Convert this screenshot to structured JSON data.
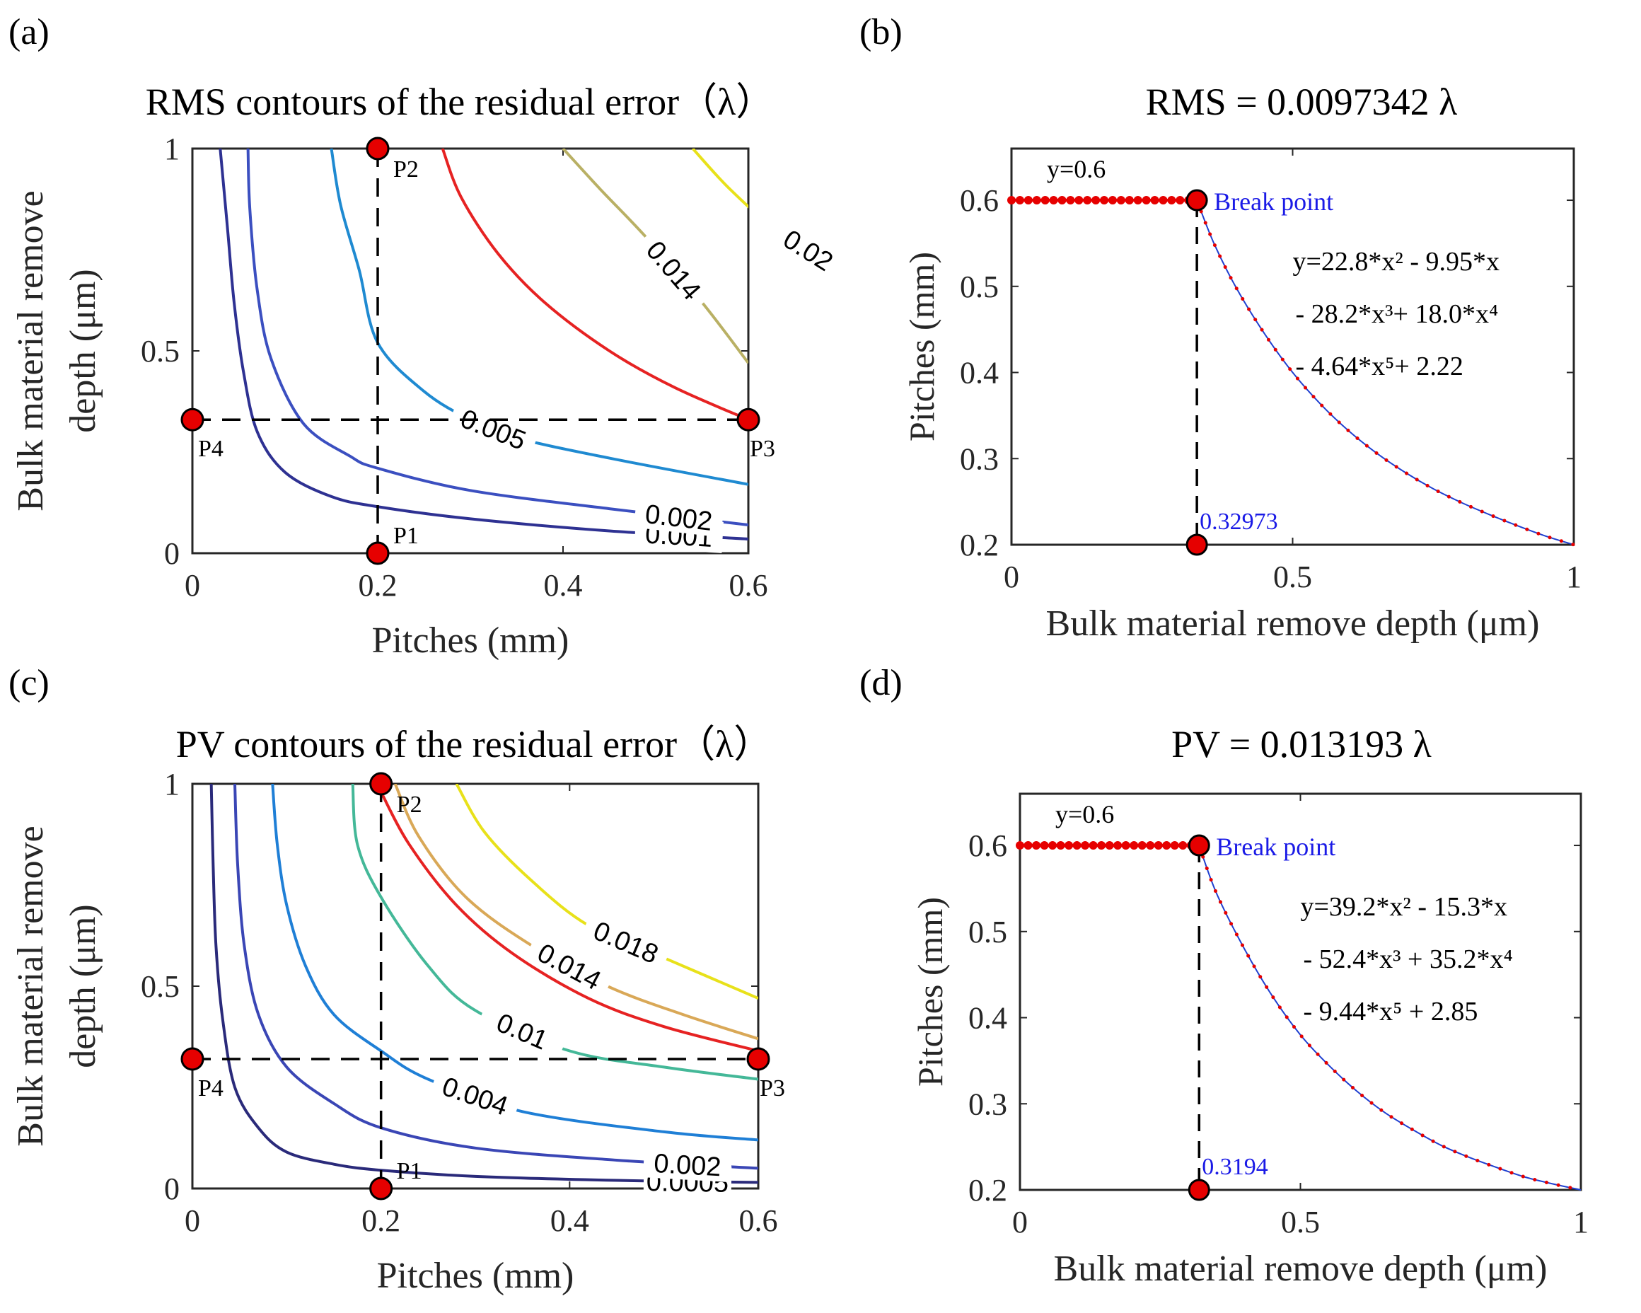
{
  "chart_data": [
    {
      "panel_label": "(a)",
      "type": "contour",
      "title": "RMS contours of the residual error（λ）",
      "xlabel": "Pitches (mm)",
      "ylabel_lines": [
        "Bulk material remove",
        "depth (μm)"
      ],
      "xlim": [
        0,
        0.6
      ],
      "ylim": [
        0,
        1
      ],
      "xticks": [
        {
          "v": 0,
          "t": "0"
        },
        {
          "v": 0.2,
          "t": "0.2"
        },
        {
          "v": 0.4,
          "t": "0.4"
        },
        {
          "v": 0.6,
          "t": "0.6"
        }
      ],
      "yticks": [
        {
          "v": 0,
          "t": "0"
        },
        {
          "v": 0.5,
          "t": "0.5"
        },
        {
          "v": 1,
          "t": "1"
        }
      ],
      "contours": [
        {
          "level": 0.001,
          "label": "0.001",
          "color": "#2e3192",
          "points": [
            [
              0.03,
              1
            ],
            [
              0.038,
              0.8
            ],
            [
              0.045,
              0.62
            ],
            [
              0.055,
              0.45
            ],
            [
              0.07,
              0.3
            ],
            [
              0.1,
              0.2
            ],
            [
              0.15,
              0.14
            ],
            [
              0.2,
              0.115
            ],
            [
              0.3,
              0.085
            ],
            [
              0.45,
              0.055
            ],
            [
              0.6,
              0.035
            ]
          ]
        },
        {
          "level": 0.002,
          "label": "0.002",
          "color": "#3b4fc0",
          "points": [
            [
              0.06,
              1
            ],
            [
              0.062,
              0.85
            ],
            [
              0.07,
              0.65
            ],
            [
              0.085,
              0.48
            ],
            [
              0.12,
              0.32
            ],
            [
              0.17,
              0.24
            ],
            [
              0.2,
              0.21
            ],
            [
              0.3,
              0.155
            ],
            [
              0.45,
              0.11
            ],
            [
              0.6,
              0.07
            ]
          ]
        },
        {
          "level": 0.005,
          "label": "0.005",
          "color": "#1f8ad1",
          "points": [
            [
              0.15,
              1
            ],
            [
              0.16,
              0.86
            ],
            [
              0.18,
              0.7
            ],
            [
              0.2,
              0.52
            ],
            [
              0.25,
              0.4
            ],
            [
              0.3,
              0.33
            ],
            [
              0.35,
              0.285
            ],
            [
              0.45,
              0.235
            ],
            [
              0.6,
              0.17
            ]
          ]
        },
        {
          "level": 0.01,
          "label": "",
          "color": "#e62222",
          "points": [
            [
              0.27,
              1
            ],
            [
              0.29,
              0.88
            ],
            [
              0.33,
              0.74
            ],
            [
              0.38,
              0.62
            ],
            [
              0.45,
              0.5
            ],
            [
              0.52,
              0.41
            ],
            [
              0.6,
              0.33
            ]
          ]
        },
        {
          "level": 0.014,
          "label": "0.014",
          "color": "#b9b064",
          "points": [
            [
              0.4,
              1
            ],
            [
              0.44,
              0.9
            ],
            [
              0.49,
              0.78
            ],
            [
              0.55,
              0.62
            ],
            [
              0.6,
              0.47
            ]
          ]
        },
        {
          "level": 0.02,
          "label": "0.02",
          "color": "#e8e11a",
          "points": [
            [
              0.54,
              1
            ],
            [
              0.58,
              0.9
            ],
            [
              0.63,
              0.8
            ],
            [
              0.7,
              0.7
            ],
            [
              0.75,
              0.62
            ]
          ]
        }
      ],
      "dashed_lines": [
        {
          "x": 0.2
        },
        {
          "y": 0.33
        }
      ],
      "points": [
        {
          "name": "P1",
          "x": 0.2,
          "y": 0
        },
        {
          "name": "P2",
          "x": 0.2,
          "y": 1
        },
        {
          "name": "P3",
          "x": 0.6,
          "y": 0.33
        },
        {
          "name": "P4",
          "x": 0,
          "y": 0.33
        }
      ]
    },
    {
      "panel_label": "(b)",
      "type": "line",
      "title": "RMS = 0.0097342 λ",
      "xlabel": "Bulk material remove depth (μm)",
      "ylabel": "Pitches (mm)",
      "xlim": [
        0,
        1
      ],
      "ylim": [
        0.2,
        0.66
      ],
      "xticks": [
        {
          "v": 0,
          "t": "0"
        },
        {
          "v": 0.5,
          "t": "0.5"
        },
        {
          "v": 1,
          "t": "1"
        }
      ],
      "yticks": [
        {
          "v": 0.2,
          "t": "0.2"
        },
        {
          "v": 0.3,
          "t": "0.3"
        },
        {
          "v": 0.4,
          "t": "0.4"
        },
        {
          "v": 0.5,
          "t": "0.5"
        },
        {
          "v": 0.6,
          "t": "0.6"
        }
      ],
      "break_x": 0.32973,
      "break_label": "Break point",
      "break_value_label": "0.32973",
      "flat_label": "y=0.6",
      "flat_y": 0.6,
      "equation_lines": [
        "y=22.8*x² - 9.95*x",
        "- 28.2*x³+ 18.0*x⁴",
        "- 4.64*x⁵+ 2.22"
      ],
      "curve_points": [
        [
          0.32973,
          0.6
        ],
        [
          0.36,
          0.55
        ],
        [
          0.4,
          0.498
        ],
        [
          0.45,
          0.445
        ],
        [
          0.5,
          0.4
        ],
        [
          0.55,
          0.363
        ],
        [
          0.6,
          0.332
        ],
        [
          0.65,
          0.306
        ],
        [
          0.7,
          0.284
        ],
        [
          0.75,
          0.265
        ],
        [
          0.8,
          0.249
        ],
        [
          0.85,
          0.235
        ],
        [
          0.9,
          0.222
        ],
        [
          0.95,
          0.21
        ],
        [
          1,
          0.2
        ]
      ]
    },
    {
      "panel_label": "(c)",
      "type": "contour",
      "title": "PV contours of the residual error（λ）",
      "xlabel": "Pitches (mm)",
      "ylabel_lines": [
        "Bulk material remove",
        "depth (μm)"
      ],
      "xlim": [
        0,
        0.6
      ],
      "ylim": [
        0,
        1
      ],
      "xticks": [
        {
          "v": 0,
          "t": "0"
        },
        {
          "v": 0.2,
          "t": "0.2"
        },
        {
          "v": 0.4,
          "t": "0.4"
        },
        {
          "v": 0.6,
          "t": "0.6"
        }
      ],
      "yticks": [
        {
          "v": 0,
          "t": "0"
        },
        {
          "v": 0.5,
          "t": "0.5"
        },
        {
          "v": 1,
          "t": "1"
        }
      ],
      "contours": [
        {
          "level": 0.0005,
          "label": "0.0005",
          "color": "#2a2a7a",
          "points": [
            [
              0.02,
              1
            ],
            [
              0.022,
              0.8
            ],
            [
              0.025,
              0.6
            ],
            [
              0.032,
              0.42
            ],
            [
              0.045,
              0.25
            ],
            [
              0.07,
              0.15
            ],
            [
              0.1,
              0.09
            ],
            [
              0.15,
              0.06
            ],
            [
              0.2,
              0.045
            ],
            [
              0.3,
              0.03
            ],
            [
              0.45,
              0.02
            ],
            [
              0.6,
              0.015
            ]
          ]
        },
        {
          "level": 0.002,
          "label": "0.002",
          "color": "#3a46b5",
          "points": [
            [
              0.045,
              1
            ],
            [
              0.048,
              0.8
            ],
            [
              0.055,
              0.6
            ],
            [
              0.07,
              0.43
            ],
            [
              0.1,
              0.3
            ],
            [
              0.15,
              0.21
            ],
            [
              0.2,
              0.15
            ],
            [
              0.3,
              0.1
            ],
            [
              0.45,
              0.07
            ],
            [
              0.6,
              0.05
            ]
          ]
        },
        {
          "level": 0.004,
          "label": "0.004",
          "color": "#1f7fd6",
          "points": [
            [
              0.085,
              1
            ],
            [
              0.09,
              0.85
            ],
            [
              0.1,
              0.7
            ],
            [
              0.12,
              0.55
            ],
            [
              0.15,
              0.43
            ],
            [
              0.2,
              0.34
            ],
            [
              0.25,
              0.27
            ],
            [
              0.35,
              0.19
            ],
            [
              0.5,
              0.14
            ],
            [
              0.6,
              0.12
            ]
          ]
        },
        {
          "level": 0.01,
          "label": "0.01",
          "color": "#44b898",
          "points": [
            [
              0.17,
              1
            ],
            [
              0.175,
              0.85
            ],
            [
              0.2,
              0.72
            ],
            [
              0.25,
              0.55
            ],
            [
              0.3,
              0.44
            ],
            [
              0.4,
              0.34
            ],
            [
              0.5,
              0.3
            ],
            [
              0.6,
              0.27
            ]
          ]
        },
        {
          "level": 0.012,
          "label": "",
          "color": "#e62222",
          "points": [
            [
              0.2,
              0.98
            ],
            [
              0.23,
              0.85
            ],
            [
              0.28,
              0.7
            ],
            [
              0.34,
              0.58
            ],
            [
              0.42,
              0.47
            ],
            [
              0.5,
              0.4
            ],
            [
              0.6,
              0.34
            ]
          ]
        },
        {
          "level": 0.014,
          "label": "0.014",
          "color": "#d9a857",
          "points": [
            [
              0.215,
              1
            ],
            [
              0.24,
              0.87
            ],
            [
              0.29,
              0.72
            ],
            [
              0.36,
              0.6
            ],
            [
              0.44,
              0.5
            ],
            [
              0.52,
              0.43
            ],
            [
              0.6,
              0.37
            ]
          ]
        },
        {
          "level": 0.018,
          "label": "0.018",
          "color": "#e8e11a",
          "points": [
            [
              0.28,
              1
            ],
            [
              0.31,
              0.88
            ],
            [
              0.36,
              0.76
            ],
            [
              0.42,
              0.65
            ],
            [
              0.5,
              0.57
            ],
            [
              0.6,
              0.47
            ]
          ]
        }
      ],
      "dashed_lines": [
        {
          "x": 0.2
        },
        {
          "y": 0.32
        }
      ],
      "points": [
        {
          "name": "P1",
          "x": 0.2,
          "y": 0
        },
        {
          "name": "P2",
          "x": 0.2,
          "y": 1
        },
        {
          "name": "P3",
          "x": 0.6,
          "y": 0.32
        },
        {
          "name": "P4",
          "x": 0,
          "y": 0.32
        }
      ]
    },
    {
      "panel_label": "(d)",
      "type": "line",
      "title": "PV = 0.013193 λ",
      "xlabel": "Bulk material remove depth (μm)",
      "ylabel": "Pitches (mm)",
      "xlim": [
        0,
        1
      ],
      "ylim": [
        0.2,
        0.66
      ],
      "xticks": [
        {
          "v": 0,
          "t": "0"
        },
        {
          "v": 0.5,
          "t": "0.5"
        },
        {
          "v": 1,
          "t": "1"
        }
      ],
      "yticks": [
        {
          "v": 0.2,
          "t": "0.2"
        },
        {
          "v": 0.3,
          "t": "0.3"
        },
        {
          "v": 0.4,
          "t": "0.4"
        },
        {
          "v": 0.5,
          "t": "0.5"
        },
        {
          "v": 0.6,
          "t": "0.6"
        }
      ],
      "break_x": 0.3194,
      "break_label": "Break point",
      "break_value_label": "0.3194",
      "flat_label": "y=0.6",
      "flat_y": 0.6,
      "equation_lines": [
        "y=39.2*x² - 15.3*x",
        "- 52.4*x³ + 35.2*x⁴",
        "- 9.44*x⁵ + 2.85"
      ],
      "curve_points": [
        [
          0.3194,
          0.6
        ],
        [
          0.35,
          0.545
        ],
        [
          0.4,
          0.48
        ],
        [
          0.45,
          0.425
        ],
        [
          0.5,
          0.38
        ],
        [
          0.55,
          0.345
        ],
        [
          0.6,
          0.315
        ],
        [
          0.65,
          0.29
        ],
        [
          0.7,
          0.27
        ],
        [
          0.75,
          0.252
        ],
        [
          0.8,
          0.238
        ],
        [
          0.85,
          0.226
        ],
        [
          0.9,
          0.215
        ],
        [
          0.95,
          0.207
        ],
        [
          1,
          0.2
        ]
      ]
    }
  ]
}
